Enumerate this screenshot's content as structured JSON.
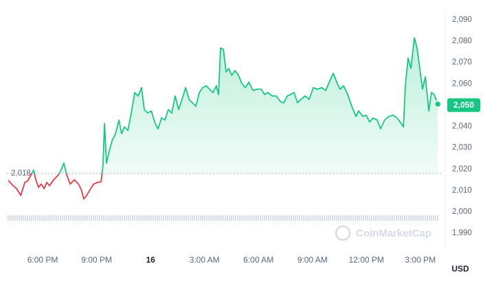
{
  "chart_data": {
    "type": "line",
    "x": [
      16.09,
      16.32,
      16.55,
      16.78,
      17.01,
      17.16,
      17.5,
      17.62,
      17.77,
      17.92,
      18.08,
      18.23,
      18.38,
      18.61,
      18.84,
      18.99,
      19.18,
      19.34,
      19.53,
      19.76,
      19.99,
      20.14,
      20.29,
      20.45,
      20.6,
      20.83,
      21.06,
      21.25,
      21.36,
      21.44,
      21.55,
      21.71,
      21.86,
      22.05,
      22.24,
      22.39,
      22.55,
      22.74,
      22.93,
      23.12,
      23.31,
      23.5,
      23.65,
      23.84,
      24.04,
      24.26,
      24.42,
      24.61,
      24.8,
      24.99,
      25.18,
      25.37,
      25.56,
      25.75,
      25.95,
      26.14,
      26.33,
      26.52,
      26.71,
      26.9,
      27.09,
      27.28,
      27.47,
      27.66,
      27.78,
      27.89,
      28.05,
      28.2,
      28.35,
      28.51,
      28.7,
      28.89,
      29.08,
      29.27,
      29.46,
      29.69,
      29.92,
      30.15,
      30.34,
      30.53,
      30.76,
      30.99,
      31.22,
      31.41,
      31.6,
      31.79,
      31.98,
      32.17,
      32.36,
      32.59,
      32.82,
      33.05,
      33.28,
      33.51,
      33.74,
      33.97,
      34.16,
      34.35,
      34.54,
      34.73,
      34.96,
      35.19,
      35.42,
      35.57,
      35.8,
      35.99,
      36.18,
      36.37,
      36.6,
      36.79,
      37.02,
      37.25,
      37.48,
      37.71,
      37.94,
      38.06,
      38.17,
      38.32,
      38.48,
      38.67,
      38.82,
      38.97,
      39.12,
      39.28,
      39.47,
      39.62,
      39.77,
      39.97
    ],
    "series": [
      {
        "color": "#16c784",
        "down_color": "#ea3943",
        "values": [
          2014.8,
          2012.5,
          2010.9,
          2007.7,
          2013.8,
          2014.4,
          2019.6,
          2015,
          2011.5,
          2013,
          2010.9,
          2013.8,
          2012.2,
          2015,
          2017,
          2018.9,
          2022.8,
          2017.3,
          2013,
          2015,
          2013,
          2010.6,
          2006,
          2007.7,
          2009.9,
          2013,
          2013.8,
          2014.1,
          2022.2,
          2041.4,
          2022.8,
          2028.6,
          2033.4,
          2036.6,
          2043,
          2036.6,
          2039.8,
          2038.2,
          2046.3,
          2055.9,
          2054.3,
          2058.2,
          2047.9,
          2046.3,
          2047.3,
          2041.4,
          2038.9,
          2044,
          2043.1,
          2047.9,
          2046.3,
          2054.3,
          2047.9,
          2052.7,
          2058.2,
          2052.7,
          2051.1,
          2049.5,
          2055.9,
          2058.2,
          2059.1,
          2057.5,
          2055.9,
          2059.1,
          2055,
          2076.8,
          2076.2,
          2065.6,
          2067.2,
          2064,
          2066.2,
          2064,
          2060.1,
          2058.2,
          2060.8,
          2056.9,
          2057.5,
          2057.5,
          2055,
          2055.9,
          2054.3,
          2054.3,
          2051.7,
          2051.1,
          2054.3,
          2055,
          2055.9,
          2051.1,
          2052.7,
          2054.3,
          2052.7,
          2058.2,
          2057.5,
          2058.2,
          2056.9,
          2061.4,
          2064.9,
          2060.8,
          2057.5,
          2059.1,
          2055,
          2049.5,
          2044.7,
          2047.3,
          2044.7,
          2045.3,
          2042.1,
          2044,
          2043.1,
          2038.9,
          2043.1,
          2044.7,
          2045.3,
          2044,
          2041.4,
          2039.8,
          2059.1,
          2072,
          2067.2,
          2081.6,
          2076.8,
          2067.2,
          2057.5,
          2063.3,
          2047.3,
          2055.9,
          2055,
          2050.5
        ]
      }
    ],
    "baseline": {
      "value": 2018,
      "label": "2,018"
    },
    "current_price": {
      "value": 2050,
      "label": "2,050"
    },
    "xlim": [
      16.01,
      40.27
    ],
    "xticks": [
      {
        "value": 18,
        "label": "6:00 PM"
      },
      {
        "value": 21,
        "label": "9:00 PM"
      },
      {
        "value": 24,
        "label": "16"
      },
      {
        "value": 27,
        "label": "3:00 AM"
      },
      {
        "value": 30,
        "label": "6:00 AM"
      },
      {
        "value": 33,
        "label": "9:00 AM"
      },
      {
        "value": 36,
        "label": "12:00 PM"
      },
      {
        "value": 39,
        "label": "3:00 PM"
      }
    ],
    "ylim": [
      1982,
      2094.8
    ],
    "yticks": [
      {
        "value": 1990,
        "label": "1,990"
      },
      {
        "value": 2000,
        "label": "2,000"
      },
      {
        "value": 2010,
        "label": "2,010"
      },
      {
        "value": 2020,
        "label": "2,020"
      },
      {
        "value": 2030,
        "label": "2,030"
      },
      {
        "value": 2040,
        "label": "2,040"
      },
      {
        "value": 2050,
        "label": "2,050"
      },
      {
        "value": 2060,
        "label": "2,060"
      },
      {
        "value": 2070,
        "label": "2,070"
      },
      {
        "value": 2080,
        "label": "2,080"
      },
      {
        "value": 2090,
        "label": "2,090"
      }
    ],
    "currency": "USD",
    "watermark": "CoinMarketCap"
  }
}
